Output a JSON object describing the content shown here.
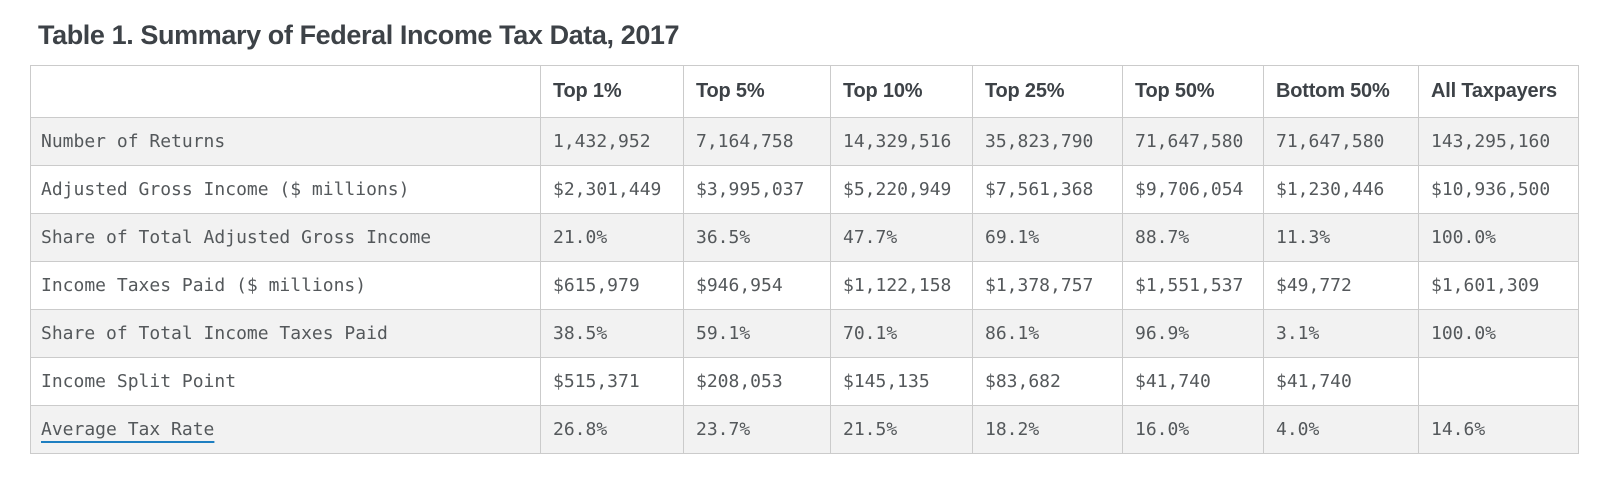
{
  "chart_data": {
    "type": "table",
    "title": "Table 1. Summary of Federal Income Tax Data, 2017",
    "columns": [
      "",
      "Top 1%",
      "Top 5%",
      "Top 10%",
      "Top 25%",
      "Top 50%",
      "Bottom 50%",
      "All Taxpayers"
    ],
    "rows": [
      {
        "label": "Number of Returns",
        "link": false,
        "values": [
          "1,432,952",
          "7,164,758",
          "14,329,516",
          "35,823,790",
          "71,647,580",
          "71,647,580",
          "143,295,160"
        ]
      },
      {
        "label": "Adjusted Gross Income ($ millions)",
        "link": false,
        "values": [
          "$2,301,449",
          "$3,995,037",
          "$5,220,949",
          "$7,561,368",
          "$9,706,054",
          "$1,230,446",
          "$10,936,500"
        ]
      },
      {
        "label": "Share of Total Adjusted Gross Income",
        "link": false,
        "values": [
          "21.0%",
          "36.5%",
          "47.7%",
          "69.1%",
          "88.7%",
          "11.3%",
          "100.0%"
        ]
      },
      {
        "label": "Income Taxes Paid ($ millions)",
        "link": false,
        "values": [
          "$615,979",
          "$946,954",
          "$1,122,158",
          "$1,378,757",
          "$1,551,537",
          "$49,772",
          "$1,601,309"
        ]
      },
      {
        "label": "Share of Total Income Taxes Paid",
        "link": false,
        "values": [
          "38.5%",
          "59.1%",
          "70.1%",
          "86.1%",
          "96.9%",
          "3.1%",
          "100.0%"
        ]
      },
      {
        "label": "Income Split Point",
        "link": false,
        "values": [
          "$515,371",
          "$208,053",
          "$145,135",
          "$83,682",
          "$41,740",
          "$41,740",
          ""
        ]
      },
      {
        "label": "Average Tax Rate",
        "link": true,
        "values": [
          "26.8%",
          "23.7%",
          "21.5%",
          "18.2%",
          "16.0%",
          "4.0%",
          "14.6%"
        ]
      }
    ]
  },
  "colors": {
    "link_underline": "#1e7fc1",
    "row_stripe": "#f2f2f2",
    "table_border": "#cbcbcb",
    "heading_text": "#3d4247",
    "body_text": "#54585b"
  }
}
